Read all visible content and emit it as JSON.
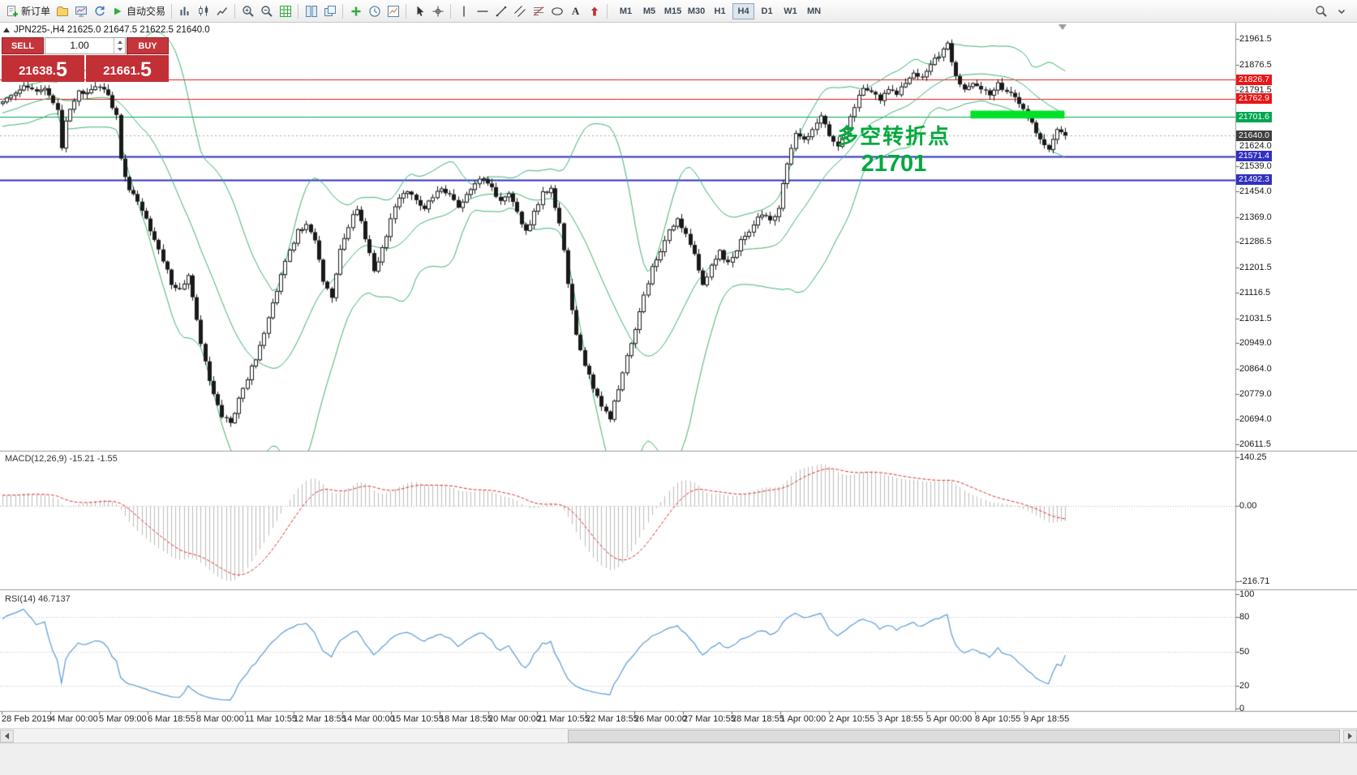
{
  "toolbar": {
    "text_tool_label": "A",
    "timeframes": [
      "M1",
      "M5",
      "M15",
      "M30",
      "H1",
      "H4",
      "D1",
      "W1",
      "MN"
    ],
    "active_timeframe": "H4",
    "items": [
      {
        "icon": "new-order-icon",
        "label": "新订单"
      },
      {
        "icon": "charts-folder-icon"
      },
      {
        "icon": "profile-icon"
      },
      {
        "icon": "refresh-icon"
      },
      {
        "icon": "autotrading-icon",
        "label": "自动交易"
      },
      {
        "sep": true
      },
      {
        "icon": "bar-chart-icon"
      },
      {
        "icon": "candlestick-chart-icon"
      },
      {
        "icon": "line-chart-icon"
      },
      {
        "sep": true
      },
      {
        "icon": "zoom-in-icon"
      },
      {
        "icon": "zoom-out-icon"
      },
      {
        "icon": "grid-icon"
      },
      {
        "sep": true
      },
      {
        "icon": "tile-windows-icon"
      },
      {
        "icon": "cascade-windows-icon"
      },
      {
        "sep": true
      },
      {
        "icon": "indicators-icon"
      },
      {
        "icon": "periods-icon"
      },
      {
        "icon": "templates-icon"
      },
      {
        "sep": true
      },
      {
        "icon": "cursor-icon"
      },
      {
        "icon": "crosshair-icon"
      },
      {
        "sep": true
      },
      {
        "icon": "vertical-line-icon"
      },
      {
        "icon": "horizontal-line-icon"
      },
      {
        "icon": "trendline-icon"
      },
      {
        "icon": "channel-icon"
      },
      {
        "icon": "fibonacci-icon"
      },
      {
        "icon": "ellipse-icon"
      },
      {
        "icon": "text-tool-icon"
      },
      {
        "icon": "arrows-icon"
      },
      {
        "sep": true
      },
      {
        "timeframes": true
      }
    ],
    "right_items": [
      {
        "icon": "search-icon"
      },
      {
        "icon": "overflow-chevron-icon"
      }
    ]
  },
  "chart": {
    "symbol_info": "JPN225-,H4  21625.0 21647.5 21622.5 21640.0",
    "trade_panel": {
      "sell_label": "SELL",
      "buy_label": "BUY",
      "volume": "1.00",
      "sell_price_main": "21638.",
      "sell_price_big": "5",
      "buy_price_main": "21661.",
      "buy_price_big": "5",
      "button_color": "#c4363c",
      "price_box_color": "#c22f35"
    },
    "annotation": {
      "title": "多空转折点",
      "value": "21701",
      "color": "#00a93c"
    },
    "price_badges": [
      {
        "text": "21826.7",
        "price": 21826.7,
        "color": "#e81717"
      },
      {
        "text": "21762.9",
        "price": 21762.9,
        "color": "#e81717"
      },
      {
        "text": "21701.6",
        "price": 21701.6,
        "color": "#00a651"
      },
      {
        "text": "21640.0",
        "price": 21640.0,
        "color": "#3f3f3f"
      },
      {
        "text": "21571.4",
        "price": 21571.4,
        "color": "#3030c0"
      },
      {
        "text": "21492.3",
        "price": 21492.3,
        "color": "#3030c0"
      }
    ]
  },
  "chart_data": {
    "type": "candlestick",
    "symbol": "JPN225-",
    "period": "H4",
    "current_bar": {
      "open": 21625.0,
      "high": 21647.5,
      "low": 21622.5,
      "close": 21640.0
    },
    "bid": 21640.0,
    "y_axis_ticks": [
      21961.5,
      21876.5,
      21791.5,
      21624.0,
      21539.0,
      21454.0,
      21369.0,
      21286.5,
      21201.5,
      21116.5,
      21031.5,
      20949.0,
      20864.0,
      20779.0,
      20694.0,
      20611.5
    ],
    "x_axis_labels": [
      "28 Feb 2019",
      "4 Mar 00:00",
      "5 Mar 09:00",
      "6 Mar 18:55",
      "8 Mar 00:00",
      "11 Mar 10:55",
      "12 Mar 18:55",
      "14 Mar 00:00",
      "15 Mar 10:55",
      "18 Mar 18:55",
      "20 Mar 00:00",
      "21 Mar 10:55",
      "22 Mar 18:55",
      "26 Mar 00:00",
      "27 Mar 10:55",
      "28 Mar 18:55",
      "1 Apr 00:00",
      "2 Apr 10:55",
      "3 Apr 18:55",
      "5 Apr 00:00",
      "8 Apr 10:55",
      "9 Apr 18:55"
    ],
    "hlines": [
      {
        "price": 21826.7,
        "color": "#e81717",
        "width": 1
      },
      {
        "price": 21762.9,
        "color": "#e81717",
        "width": 1
      },
      {
        "price": 21701.6,
        "color": "#00a651",
        "width": 1
      },
      {
        "price": 21571.4,
        "color": "#3030c0",
        "width": 2
      },
      {
        "price": 21492.3,
        "color": "#3030c0",
        "width": 2
      }
    ],
    "bid_line": {
      "price": 21640.0,
      "color": "#aaaaaa"
    },
    "highlight_rect": {
      "bar_start": 229.5,
      "bar_end": 251.8,
      "price_top": 21723,
      "price_bottom": 21697,
      "color": "#00e128"
    },
    "candle_style": {
      "bull": "#ffffff",
      "bear": "#1a1a1a",
      "outline": "#1a1a1a"
    },
    "bollinger": {
      "period": 20,
      "deviation": 2,
      "color": "#3cb371"
    },
    "visible_bars": 253,
    "price_keyframes": [
      [
        0,
        21450
      ],
      [
        20,
        21580
      ],
      [
        40,
        21680
      ],
      [
        59,
        21745
      ],
      [
        60,
        21755
      ],
      [
        65,
        21800
      ],
      [
        70,
        21790
      ],
      [
        73,
        21720
      ],
      [
        74,
        21600
      ],
      [
        75,
        21690
      ],
      [
        78,
        21780
      ],
      [
        82,
        21800
      ],
      [
        85,
        21780
      ],
      [
        87,
        21700
      ],
      [
        88,
        21560
      ],
      [
        90,
        21460
      ],
      [
        92,
        21420
      ],
      [
        94,
        21360
      ],
      [
        96,
        21300
      ],
      [
        98,
        21220
      ],
      [
        100,
        21150
      ],
      [
        102,
        21120
      ],
      [
        104,
        21170
      ],
      [
        106,
        21020
      ],
      [
        108,
        20880
      ],
      [
        110,
        20780
      ],
      [
        112,
        20710
      ],
      [
        114,
        20680
      ],
      [
        116,
        20760
      ],
      [
        118,
        20830
      ],
      [
        120,
        20900
      ],
      [
        122,
        20990
      ],
      [
        124,
        21080
      ],
      [
        126,
        21170
      ],
      [
        128,
        21260
      ],
      [
        130,
        21320
      ],
      [
        132,
        21350
      ],
      [
        134,
        21290
      ],
      [
        136,
        21160
      ],
      [
        138,
        21100
      ],
      [
        140,
        21260
      ],
      [
        142,
        21340
      ],
      [
        144,
        21400
      ],
      [
        146,
        21300
      ],
      [
        148,
        21180
      ],
      [
        150,
        21260
      ],
      [
        152,
        21360
      ],
      [
        154,
        21430
      ],
      [
        156,
        21460
      ],
      [
        158,
        21430
      ],
      [
        160,
        21390
      ],
      [
        162,
        21440
      ],
      [
        164,
        21470
      ],
      [
        166,
        21440
      ],
      [
        168,
        21400
      ],
      [
        170,
        21440
      ],
      [
        172,
        21480
      ],
      [
        174,
        21500
      ],
      [
        176,
        21460
      ],
      [
        178,
        21420
      ],
      [
        180,
        21450
      ],
      [
        182,
        21380
      ],
      [
        184,
        21320
      ],
      [
        186,
        21380
      ],
      [
        188,
        21450
      ],
      [
        190,
        21460
      ],
      [
        192,
        21350
      ],
      [
        194,
        21150
      ],
      [
        196,
        20980
      ],
      [
        198,
        20870
      ],
      [
        200,
        20800
      ],
      [
        202,
        20740
      ],
      [
        204,
        20700
      ],
      [
        206,
        20800
      ],
      [
        208,
        20900
      ],
      [
        210,
        21000
      ],
      [
        212,
        21100
      ],
      [
        214,
        21200
      ],
      [
        216,
        21260
      ],
      [
        218,
        21320
      ],
      [
        220,
        21360
      ],
      [
        222,
        21310
      ],
      [
        224,
        21240
      ],
      [
        226,
        21140
      ],
      [
        228,
        21200
      ],
      [
        230,
        21260
      ],
      [
        232,
        21210
      ],
      [
        234,
        21260
      ],
      [
        236,
        21310
      ],
      [
        238,
        21340
      ],
      [
        240,
        21380
      ],
      [
        242,
        21350
      ],
      [
        244,
        21400
      ],
      [
        246,
        21550
      ],
      [
        248,
        21640
      ],
      [
        250,
        21620
      ],
      [
        252,
        21660
      ],
      [
        254,
        21700
      ],
      [
        256,
        21640
      ],
      [
        258,
        21600
      ],
      [
        260,
        21660
      ],
      [
        262,
        21740
      ],
      [
        264,
        21800
      ],
      [
        266,
        21790
      ],
      [
        268,
        21760
      ],
      [
        270,
        21800
      ],
      [
        272,
        21770
      ],
      [
        274,
        21820
      ],
      [
        276,
        21850
      ],
      [
        278,
        21830
      ],
      [
        280,
        21880
      ],
      [
        282,
        21910
      ],
      [
        284,
        21950
      ],
      [
        286,
        21830
      ],
      [
        288,
        21790
      ],
      [
        290,
        21820
      ],
      [
        292,
        21800
      ],
      [
        294,
        21780
      ],
      [
        296,
        21810
      ],
      [
        298,
        21790
      ],
      [
        300,
        21760
      ],
      [
        302,
        21720
      ],
      [
        304,
        21680
      ],
      [
        306,
        21620
      ],
      [
        308,
        21600
      ],
      [
        310,
        21660
      ],
      [
        312,
        21640
      ]
    ],
    "macd": {
      "label": "MACD(12,26,9) -15.21 -1.55",
      "fast": 12,
      "slow": 26,
      "signal": 9,
      "value": -15.21,
      "signal_value": -1.55,
      "histogram_color": "#bdbdbd",
      "signal_color": "#e03131",
      "scale_labels": [
        {
          "text": "140.25",
          "value": 140.25
        },
        {
          "text": "0.00",
          "value": 0
        },
        {
          "text": "-216.71",
          "value": -216.71
        }
      ]
    },
    "rsi": {
      "label": "RSI(14) 46.7137",
      "period": 14,
      "value": 46.7137,
      "color": "#5b9bd5",
      "levels": [
        80,
        50,
        20
      ],
      "scale_labels": [
        {
          "text": "100",
          "value": 100
        },
        {
          "text": "80",
          "value": 80
        },
        {
          "text": "50",
          "value": 50
        },
        {
          "text": "20",
          "value": 20
        },
        {
          "text": "0",
          "value": 0
        }
      ]
    }
  }
}
